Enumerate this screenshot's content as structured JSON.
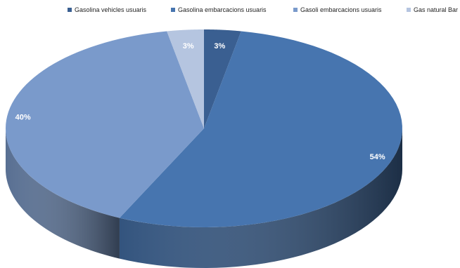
{
  "chart_data": {
    "type": "pie",
    "title": "",
    "legend_position": "top",
    "slices": [
      {
        "name": "Gasolina vehicles usuaris",
        "value": 3,
        "label": "3%",
        "color": "#3A5F91"
      },
      {
        "name": "Gasolina embarcacions usuaris",
        "value": 54,
        "label": "54%",
        "color": "#4775AF"
      },
      {
        "name": "Gasoli embarcacions usuaris",
        "value": 40,
        "label": "40%",
        "color": "#7A9ACB"
      },
      {
        "name": "Gas natural Bar",
        "value": 3,
        "label": "3%",
        "color": "#B5C5E0"
      }
    ]
  }
}
